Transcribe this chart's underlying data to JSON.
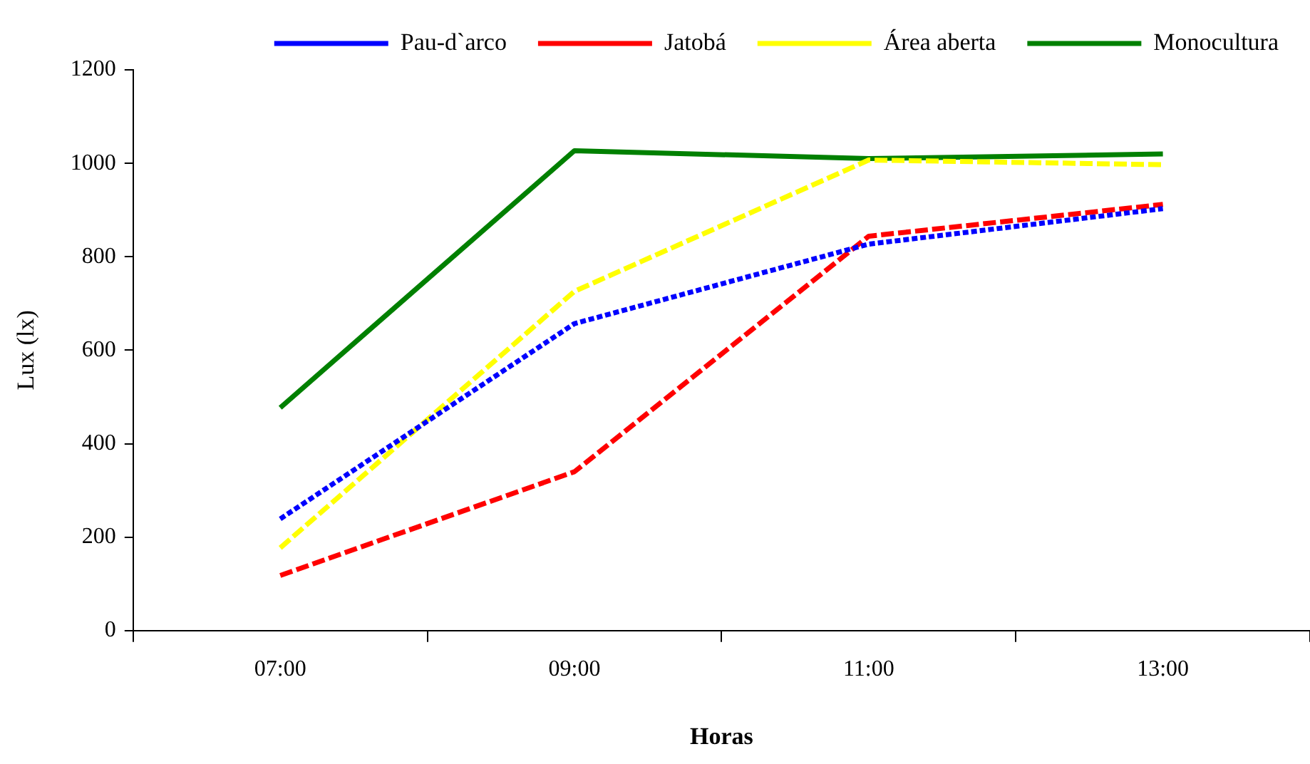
{
  "chart_data": {
    "type": "line",
    "xlabel": "Horas",
    "ylabel": "Lux (lx)",
    "categories": [
      "07:00",
      "09:00",
      "11:00",
      "13:00"
    ],
    "ylim": [
      0,
      1200
    ],
    "yticks": [
      0,
      200,
      400,
      600,
      800,
      1000,
      1200
    ],
    "grid": false,
    "legend": "top",
    "marker": "none",
    "series": [
      {
        "name": "Pau-d`arco",
        "color": "#0000ff",
        "line_style": "dotted",
        "values": [
          239,
          657,
          827,
          903
        ]
      },
      {
        "name": "Jatobá",
        "color": "#ff0000",
        "line_style": "dashed",
        "values": [
          118,
          340,
          844,
          912
        ]
      },
      {
        "name": "Área aberta",
        "color": "#ffff00",
        "line_style": "dashed",
        "values": [
          177,
          726,
          1007,
          997
        ]
      },
      {
        "name": "Monocultura",
        "color": "#008000",
        "line_style": "solid",
        "values": [
          477,
          1027,
          1010,
          1020
        ]
      }
    ]
  }
}
